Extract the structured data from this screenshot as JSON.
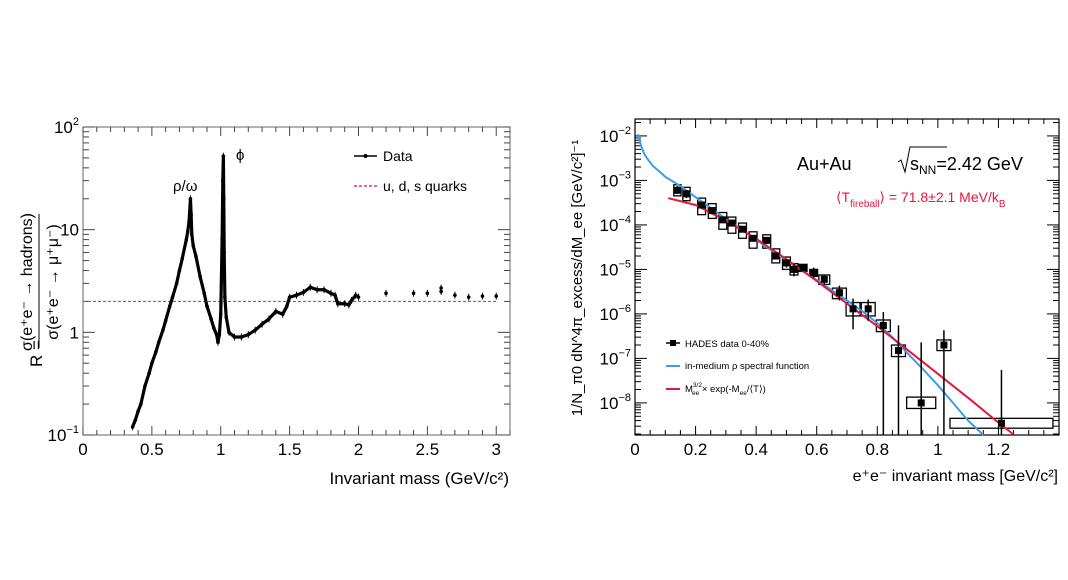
{
  "chart_data": [
    {
      "type": "scatter",
      "title": "",
      "xlabel": "Invariant mass (GeV/c²)",
      "ylabel_prefix": "R =",
      "ylabel_num": "σ(e⁺e⁻ → hadrons)",
      "ylabel_den": "σ(e⁺e⁻ → μ⁺μ⁻)",
      "xlim": [
        0,
        3.1
      ],
      "ylim": [
        0.1,
        100
      ],
      "yscale": "log",
      "xticks": [
        "0",
        "0.5",
        "1",
        "1.5",
        "2",
        "2.5",
        "3"
      ],
      "xtick_values": [
        0,
        0.5,
        1,
        1.5,
        2,
        2.5,
        3
      ],
      "yticks": [
        {
          "base": "10",
          "exp": "−1",
          "value": 0.1
        },
        {
          "base": "1",
          "exp": "",
          "value": 1
        },
        {
          "base": "10",
          "exp": "",
          "value": 10
        },
        {
          "base": "10",
          "exp": "2",
          "value": 100
        }
      ],
      "legend_position": "top-right",
      "legend": [
        "Data",
        "u, d, s quarks"
      ],
      "annotations": [
        {
          "text": "ρ/ω",
          "x": 0.78,
          "y": 25
        },
        {
          "text": "ϕ",
          "x": 1.1,
          "y": 60
        }
      ],
      "series": [
        {
          "name": "Data",
          "color": "#000000",
          "points": [
            [
              0.36,
              0.12
            ],
            [
              0.38,
              0.14
            ],
            [
              0.4,
              0.17
            ],
            [
              0.42,
              0.2
            ],
            [
              0.45,
              0.3
            ],
            [
              0.48,
              0.4
            ],
            [
              0.5,
              0.5
            ],
            [
              0.53,
              0.65
            ],
            [
              0.55,
              0.8
            ],
            [
              0.58,
              1.05
            ],
            [
              0.6,
              1.3
            ],
            [
              0.63,
              1.8
            ],
            [
              0.65,
              2.2
            ],
            [
              0.68,
              3
            ],
            [
              0.7,
              4
            ],
            [
              0.72,
              5.2
            ],
            [
              0.75,
              8
            ],
            [
              0.76,
              9.5
            ],
            [
              0.77,
              12
            ],
            [
              0.78,
              20
            ],
            [
              0.785,
              14
            ],
            [
              0.79,
              9
            ],
            [
              0.8,
              7
            ],
            [
              0.82,
              5.5
            ],
            [
              0.85,
              3.5
            ],
            [
              0.88,
              2.4
            ],
            [
              0.9,
              1.8
            ],
            [
              0.93,
              1.35
            ],
            [
              0.95,
              1.1
            ],
            [
              0.97,
              0.95
            ],
            [
              0.98,
              0.8
            ],
            [
              0.99,
              0.95
            ],
            [
              1.0,
              1.5
            ],
            [
              1.01,
              8
            ],
            [
              1.015,
              30
            ],
            [
              1.019,
              52
            ],
            [
              1.022,
              20
            ],
            [
              1.025,
              6
            ],
            [
              1.03,
              2.2
            ],
            [
              1.04,
              1.4
            ],
            [
              1.06,
              1.0
            ],
            [
              1.1,
              0.9
            ],
            [
              1.15,
              0.9
            ],
            [
              1.2,
              0.95
            ],
            [
              1.25,
              1.05
            ],
            [
              1.3,
              1.2
            ],
            [
              1.35,
              1.35
            ],
            [
              1.4,
              1.6
            ],
            [
              1.45,
              1.5
            ],
            [
              1.48,
              1.8
            ],
            [
              1.5,
              2.2
            ],
            [
              1.55,
              2.3
            ],
            [
              1.6,
              2.45
            ],
            [
              1.65,
              2.75
            ],
            [
              1.7,
              2.6
            ],
            [
              1.75,
              2.6
            ],
            [
              1.8,
              2.4
            ],
            [
              1.83,
              2.3
            ],
            [
              1.85,
              1.9
            ],
            [
              1.9,
              1.9
            ],
            [
              1.93,
              1.85
            ],
            [
              1.95,
              2.05
            ],
            [
              1.98,
              2.3
            ],
            [
              2.0,
              2.2
            ],
            [
              2.2,
              2.4
            ],
            [
              2.4,
              2.4
            ],
            [
              2.5,
              2.4
            ],
            [
              2.6,
              2.5
            ],
            [
              2.6,
              2.7
            ],
            [
              2.7,
              2.3
            ],
            [
              2.8,
              2.2
            ],
            [
              2.9,
              2.25
            ],
            [
              3.0,
              2.25
            ]
          ]
        },
        {
          "name": "u, d, s quarks",
          "color": "#e0308a",
          "style": "dashed",
          "value": 2
        }
      ]
    },
    {
      "type": "scatter",
      "title": "Au+Au √s_NN=2.42 GeV",
      "title_main": "Au+Au",
      "title_sqrt": "s",
      "title_sub": "NN",
      "title_value": "=2.42 GeV",
      "subtitle_pre": "⟨T",
      "subtitle_sub": "fireball",
      "subtitle_post": "⟩ = 71.8±2.1 MeV/k",
      "subtitle_sub2": "B",
      "xlabel": "e⁺e⁻ invariant mass [GeV/c²]",
      "ylabel": "1/N_π0 dN^4π_excess/dM_ee [GeV/c²]⁻¹",
      "ylabel_parts": {
        "a": "1/N",
        "a_sub": "π",
        "a_subsub": "0",
        "b": " dN",
        "b_sup": "4π",
        "b_sub": "excess",
        "c": "/dM",
        "c_sub": "ee",
        "d": " [GeV/c",
        "d_sup": "2",
        "e": "]",
        "e_sup": "-1"
      },
      "xlim": [
        0,
        1.4
      ],
      "ylim": [
        1.9e-09,
        0.024
      ],
      "yscale": "log",
      "xticks": [
        "0",
        "0.2",
        "0.4",
        "0.6",
        "0.8",
        "1",
        "1.2"
      ],
      "xtick_values": [
        0,
        0.2,
        0.4,
        0.6,
        0.8,
        1.0,
        1.2
      ],
      "yticks": [
        {
          "base": "10",
          "exp": "−8",
          "value": 1e-08
        },
        {
          "base": "10",
          "exp": "−7",
          "value": 1e-07
        },
        {
          "base": "10",
          "exp": "−6",
          "value": 1e-06
        },
        {
          "base": "10",
          "exp": "−5",
          "value": 1e-05
        },
        {
          "base": "10",
          "exp": "−4",
          "value": 0.0001
        },
        {
          "base": "10",
          "exp": "−3",
          "value": 0.001
        },
        {
          "base": "10",
          "exp": "−2",
          "value": 0.01
        }
      ],
      "legend_position": "bottom-left",
      "legend": [
        "HADES data 0-40%",
        "in-medium ρ spectral function",
        "M_ee^3/2 × exp(-M_ee/⟨T⟩)"
      ],
      "legend3_parts": {
        "a": "M",
        "sup": "3/2",
        "sub": "ee",
        "b": " × exp(-M",
        "sub2": "ee",
        "c": "/⟨T⟩)"
      },
      "colors": {
        "data": "#000000",
        "spectral": "#3a9ee8",
        "fit": "#e8163c",
        "subtitle": "#e8163c"
      },
      "series": [
        {
          "name": "HADES data 0-40%",
          "points": [
            {
              "x": 0.14,
              "y": 0.0006,
              "err": [
                0.0005,
                0.00075
              ],
              "sys_dx": 0.012,
              "sys": [
                0.00045,
                0.0008
              ]
            },
            {
              "x": 0.17,
              "y": 0.0005,
              "err": [
                0.0004,
                0.0006
              ],
              "sys_dx": 0.012,
              "sys": [
                0.00035,
                0.0007
              ]
            },
            {
              "x": 0.22,
              "y": 0.00028,
              "err": [
                0.00024,
                0.00033
              ],
              "sys_dx": 0.013,
              "sys": [
                0.00017,
                0.0004
              ]
            },
            {
              "x": 0.255,
              "y": 0.00021,
              "err": [
                0.00018,
                0.00024
              ],
              "sys_dx": 0.013,
              "sys": [
                0.00014,
                0.0003
              ]
            },
            {
              "x": 0.29,
              "y": 0.00013,
              "err": [
                0.00011,
                0.00015
              ],
              "sys_dx": 0.013,
              "sys": [
                8e-05,
                0.00019
              ]
            },
            {
              "x": 0.32,
              "y": 0.00011,
              "err": [
                9.5e-05,
                0.000125
              ],
              "sys_dx": 0.013,
              "sys": [
                6.5e-05,
                0.00015
              ]
            },
            {
              "x": 0.355,
              "y": 8e-05,
              "err": [
                7e-05,
                9e-05
              ],
              "sys_dx": 0.013,
              "sys": [
                5e-05,
                0.00011
              ]
            },
            {
              "x": 0.39,
              "y": 5e-05,
              "err": [
                4.4e-05,
                5.6e-05
              ],
              "sys_dx": 0.013,
              "sys": [
                3e-05,
                7e-05
              ]
            },
            {
              "x": 0.435,
              "y": 4.5e-05,
              "err": [
                3.8e-05,
                5.2e-05
              ],
              "sys_dx": 0.013,
              "sys": [
                3e-05,
                6e-05
              ]
            },
            {
              "x": 0.465,
              "y": 2e-05,
              "err": [
                1.7e-05,
                2.3e-05
              ],
              "sys_dx": 0.013,
              "sys": [
                1.4e-05,
                2.9e-05
              ]
            },
            {
              "x": 0.5,
              "y": 1.4e-05,
              "err": [
                1.1e-05,
                1.7e-05
              ],
              "sys_dx": 0.013,
              "sys": [
                1e-05,
                1.9e-05
              ]
            },
            {
              "x": 0.525,
              "y": 1e-05,
              "err": [
                7e-06,
                1.3e-05
              ],
              "sys_dx": 0.013,
              "sys": [
                7.5e-06,
                1.35e-05
              ]
            },
            {
              "x": 0.555,
              "y": 1.1e-05,
              "err": [
                9e-06,
                1.3e-05
              ],
              "sys_dx": 0.013,
              "sys": [
                9e-06,
                1.3e-05
              ]
            },
            {
              "x": 0.59,
              "y": 8.5e-06,
              "err": [
                6.5e-06,
                1.1e-05
              ],
              "sys_dx": 0.013,
              "sys": [
                7e-06,
                1e-05
              ]
            },
            {
              "x": 0.625,
              "y": 6e-06,
              "err": [
                4.5e-06,
                7.5e-06
              ],
              "sys_dx": 0.018,
              "sys": [
                4.6e-06,
                7.5e-06
              ]
            },
            {
              "x": 0.675,
              "y": 3e-06,
              "err": [
                2e-06,
                4.3e-06
              ],
              "sys_dx": 0.023,
              "sys": [
                2.2e-06,
                3.8e-06
              ]
            },
            {
              "x": 0.72,
              "y": 1.3e-06,
              "err": [
                4.5e-07,
                2.2e-06
              ],
              "sys_dx": 0.023,
              "sys": [
                9e-07,
                1.8e-06
              ]
            },
            {
              "x": 0.77,
              "y": 1.3e-06,
              "err": [
                7e-07,
                2.1e-06
              ],
              "sys_dx": 0.023,
              "sys": [
                9e-07,
                1.8e-06
              ]
            },
            {
              "x": 0.82,
              "y": 5.5e-07,
              "err": [
                1.9e-09,
                1.1e-06
              ],
              "sys_dx": 0.023,
              "sys": [
                4e-07,
                7.3e-07
              ]
            },
            {
              "x": 0.87,
              "y": 1.5e-07,
              "err": [
                1.9e-09,
                5.5e-07
              ],
              "sys_dx": 0.023,
              "sys": [
                1.1e-07,
                2e-07
              ]
            },
            {
              "x": 0.945,
              "y": 1e-08,
              "err": [
                1.9e-09,
                2.3e-07
              ],
              "sys_dx": 0.048,
              "sys": [
                7.5e-09,
                1.35e-08
              ]
            },
            {
              "x": 1.02,
              "y": 2e-07,
              "err": [
                1.9e-09,
                4.3e-07
              ],
              "sys_dx": 0.023,
              "sys": [
                1.5e-07,
                2.6e-07
              ]
            },
            {
              "x": 1.21,
              "y": 3.5e-09,
              "err": [
                1.9e-09,
                5.5e-08
              ],
              "sys_dx": 0.17,
              "sys": [
                2.7e-09,
                4.5e-09
              ]
            }
          ]
        },
        {
          "name": "in-medium ρ spectral function",
          "points": [
            [
              0.01,
              0.011
            ],
            [
              0.02,
              0.006
            ],
            [
              0.03,
              0.004
            ],
            [
              0.045,
              0.0028
            ],
            [
              0.06,
              0.0021
            ],
            [
              0.08,
              0.0016
            ],
            [
              0.1,
              0.0012
            ],
            [
              0.15,
              0.00075
            ],
            [
              0.2,
              0.00042
            ],
            [
              0.25,
              0.00024
            ],
            [
              0.3,
              0.000135
            ],
            [
              0.35,
              8e-05
            ],
            [
              0.4,
              4.6e-05
            ],
            [
              0.45,
              2.7e-05
            ],
            [
              0.5,
              1.6e-05
            ],
            [
              0.55,
              9.5e-06
            ],
            [
              0.6,
              5.8e-06
            ],
            [
              0.65,
              3.4e-06
            ],
            [
              0.7,
              2e-06
            ],
            [
              0.75,
              1.15e-06
            ],
            [
              0.8,
              6.2e-07
            ],
            [
              0.85,
              3e-07
            ],
            [
              0.9,
              1.3e-07
            ],
            [
              0.95,
              5.8e-08
            ],
            [
              1.0,
              2.5e-08
            ],
            [
              1.05,
              1e-08
            ],
            [
              1.1,
              4e-09
            ],
            [
              1.15,
              1.7e-09
            ]
          ]
        },
        {
          "name": "M_ee^3/2 × exp(-M_ee/⟨T⟩)",
          "points": [
            [
              0.11,
              0.0004
            ],
            [
              0.2,
              0.00028
            ],
            [
              0.3,
              0.000125
            ],
            [
              0.4,
              4.9e-05
            ],
            [
              0.5,
              1.7e-05
            ],
            [
              0.6,
              5.5e-06
            ],
            [
              0.7,
              1.7e-06
            ],
            [
              0.8,
              5.3e-07
            ],
            [
              0.9,
              1.55e-07
            ],
            [
              1.0,
              4.5e-08
            ],
            [
              1.1,
              1.3e-08
            ],
            [
              1.2,
              3.6e-09
            ],
            [
              1.25,
              1.95e-09
            ]
          ]
        }
      ]
    }
  ]
}
